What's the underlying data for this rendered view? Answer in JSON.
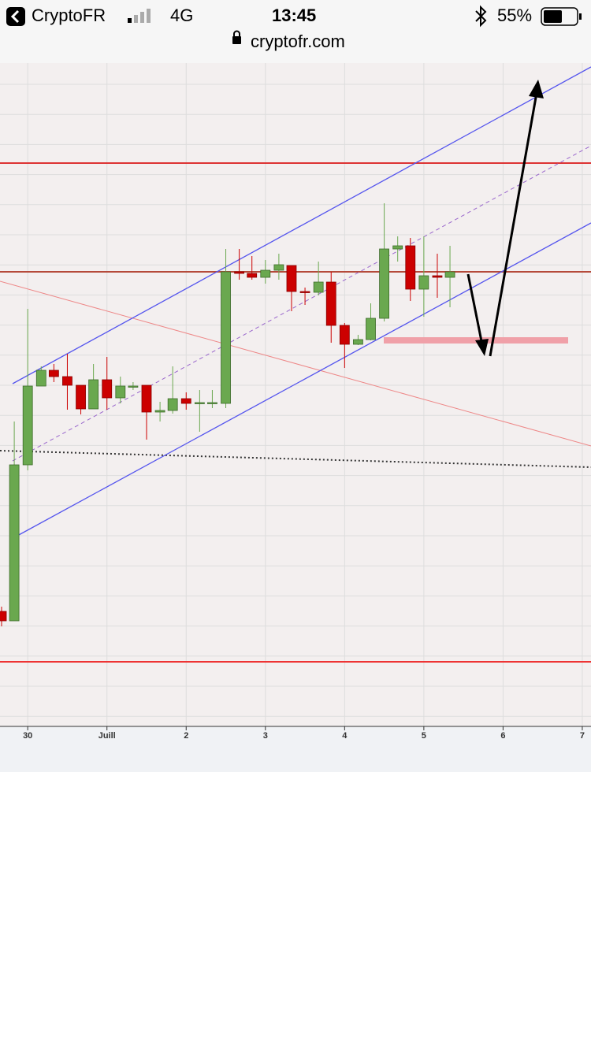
{
  "status_bar": {
    "app": "CryptoFR",
    "network": "4G",
    "time": "13:45",
    "battery": "55%"
  },
  "url": "cryptofr.com",
  "chart_data": {
    "type": "candlestick",
    "x": [
      -0.33,
      -0.17,
      0,
      0.17,
      0.33,
      0.5,
      0.67,
      0.83,
      1,
      1.17,
      1.33,
      1.5,
      1.67,
      1.83,
      2,
      2.17,
      2.33,
      2.5,
      2.67,
      2.83,
      3,
      3.17,
      3.33,
      3.5,
      3.67,
      3.83,
      4,
      4.17,
      4.33,
      4.5,
      4.67,
      4.83,
      5,
      5.17,
      5.33
    ],
    "open": [
      146,
      134,
      332,
      432,
      452,
      444,
      433,
      403,
      440,
      417,
      431,
      433,
      399,
      401,
      416,
      410,
      410,
      410,
      577,
      575,
      570,
      579,
      585,
      552,
      551,
      564,
      509,
      485,
      491,
      518,
      606,
      610,
      555,
      572,
      570
    ],
    "high": [
      152,
      387,
      530,
      457,
      460,
      473,
      433,
      460,
      469,
      444,
      437,
      433,
      412,
      457,
      424,
      427,
      427,
      606,
      606,
      597,
      592,
      600,
      585,
      557,
      590,
      577,
      512,
      497,
      537,
      664,
      622,
      620,
      622,
      600,
      610
    ],
    "low": [
      127,
      134,
      325,
      432,
      437,
      402,
      396,
      403,
      402,
      410,
      427,
      364,
      387,
      397,
      402,
      374,
      404,
      404,
      567,
      567,
      562,
      567,
      527,
      535,
      547,
      487,
      455,
      484,
      490,
      514,
      590,
      540,
      520,
      544,
      532
    ],
    "close": [
      134,
      332,
      432,
      452,
      444,
      433,
      403,
      440,
      417,
      432,
      432,
      399,
      401,
      416,
      410,
      411,
      411,
      577,
      575,
      570,
      579,
      586,
      552,
      551,
      564,
      509,
      485,
      491,
      518,
      606,
      610,
      555,
      572,
      570,
      577
    ],
    "up_color": "#6aa84f",
    "down_color": "#cc0000",
    "xlim": [
      -0.35,
      7.11
    ],
    "ylim": [
      0,
      842
    ],
    "xticks": [
      {
        "value": 0,
        "label": "30"
      },
      {
        "value": 1,
        "label": "Juill"
      },
      2,
      3,
      4,
      5,
      6,
      7
    ],
    "grid": true
  }
}
